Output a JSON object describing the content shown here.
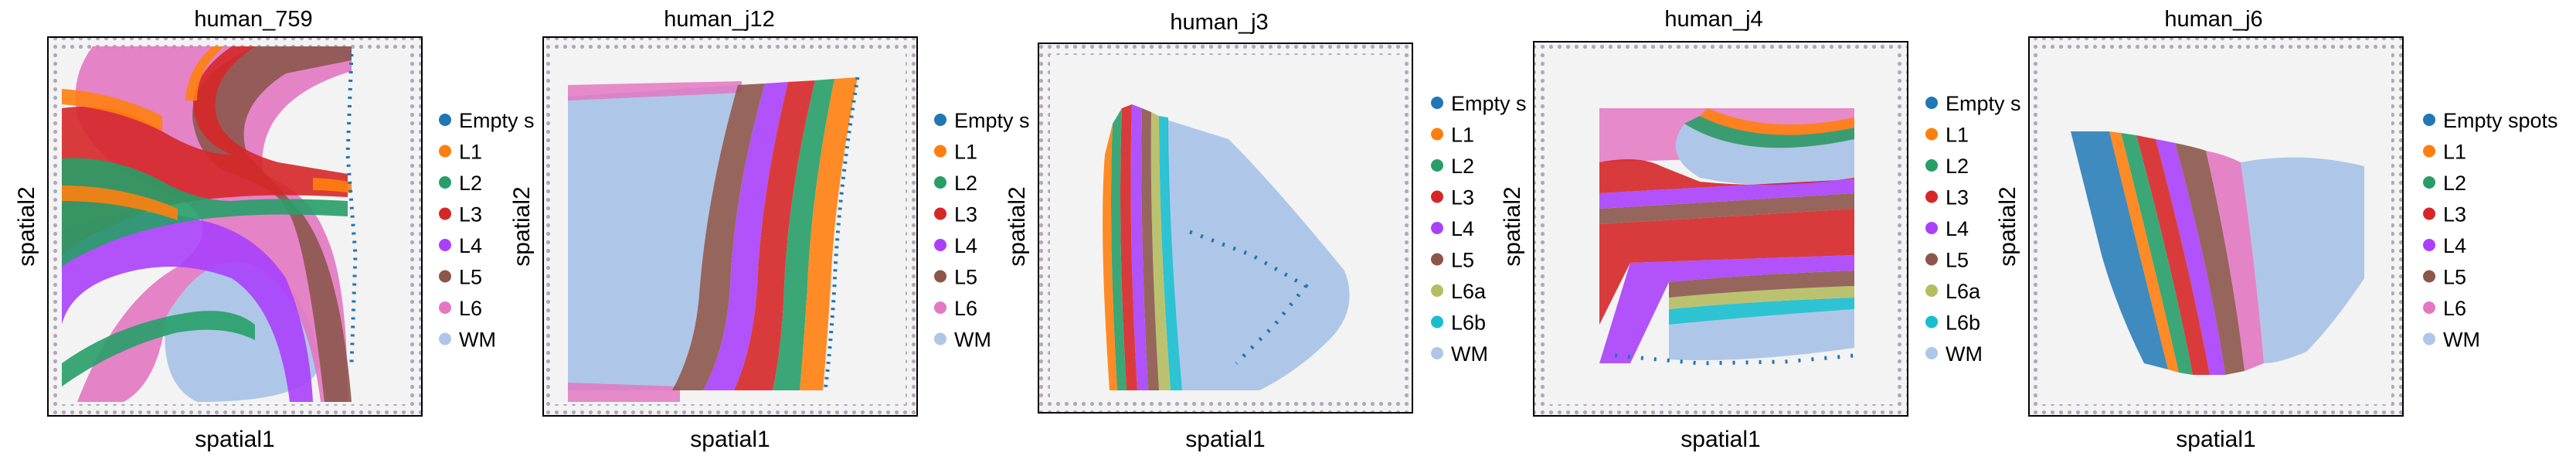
{
  "palette": {
    "Empty spots": "#1f77b4",
    "L1": "#ff7f0e",
    "L2": "#279e68",
    "L3": "#d62728",
    "L4": "#aa40fc",
    "L5": "#8c564b",
    "L6": "#e377c2",
    "L6a": "#b5bd61",
    "L6b": "#17becf",
    "WM": "#aec7e8",
    "frame": "#9b8ea6",
    "tissue_bg": "#f3f3f3"
  },
  "chart_data": [
    {
      "type": "scatter",
      "title": "human_759",
      "xlabel": "spatial1",
      "ylabel": "spatial2",
      "legend": [
        "Empty s",
        "L1",
        "L2",
        "L3",
        "L4",
        "L5",
        "L6",
        "WM"
      ],
      "legend_placement": "right",
      "grid": false
    },
    {
      "type": "scatter",
      "title": "human_j12",
      "xlabel": "spatial1",
      "ylabel": "spatial2",
      "legend": [
        "Empty s",
        "L1",
        "L2",
        "L3",
        "L4",
        "L5",
        "L6",
        "WM"
      ],
      "legend_placement": "right",
      "grid": false
    },
    {
      "type": "scatter",
      "title": "human_j3",
      "xlabel": "spatial1",
      "ylabel": "spatial2",
      "legend": [
        "Empty s",
        "L1",
        "L2",
        "L3",
        "L4",
        "L5",
        "L6a",
        "L6b",
        "WM"
      ],
      "legend_placement": "right",
      "grid": false
    },
    {
      "type": "scatter",
      "title": "human_j4",
      "xlabel": "spatial1",
      "ylabel": "spatial2",
      "legend": [
        "Empty s",
        "L1",
        "L2",
        "L3",
        "L4",
        "L5",
        "L6a",
        "L6b",
        "WM"
      ],
      "legend_placement": "right",
      "grid": false
    },
    {
      "type": "scatter",
      "title": "human_j6",
      "xlabel": "spatial1",
      "ylabel": "spatial2",
      "legend": [
        "Empty spots",
        "L1",
        "L2",
        "L3",
        "L4",
        "L5",
        "L6",
        "WM"
      ],
      "legend_placement": "right",
      "grid": false
    }
  ]
}
